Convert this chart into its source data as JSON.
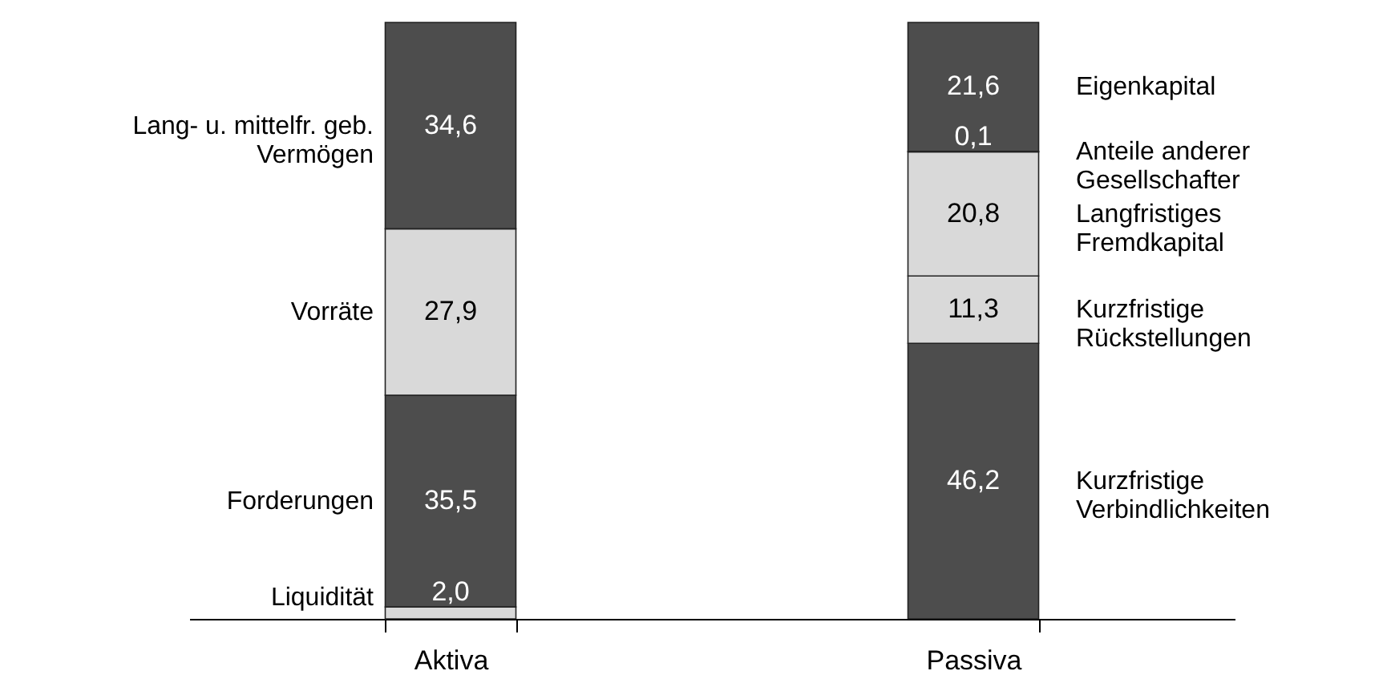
{
  "chart_data": {
    "type": "bar",
    "stacked": true,
    "grid": false,
    "categories": [
      "Aktiva",
      "Passiva"
    ],
    "series": [
      {
        "name": "Liquidität",
        "color": "#d9d9d9",
        "values": [
          2.0,
          null
        ],
        "value_labels": [
          "2,0",
          null
        ]
      },
      {
        "name": "Forderungen",
        "color": "#4d4d4d",
        "values": [
          35.5,
          null
        ],
        "value_labels": [
          "35,5",
          null
        ]
      },
      {
        "name": "Vorräte",
        "color": "#d9d9d9",
        "values": [
          27.9,
          null
        ],
        "value_labels": [
          "27,9",
          null
        ]
      },
      {
        "name": "Lang- u. mittelfr. geb.\nVermögen",
        "color": "#4d4d4d",
        "values": [
          34.6,
          null
        ],
        "value_labels": [
          "34,6",
          null
        ]
      },
      {
        "name": "Kurzfristige\nVerbindlichkeiten",
        "color": "#4d4d4d",
        "values": [
          null,
          46.2
        ],
        "value_labels": [
          null,
          "46,2"
        ]
      },
      {
        "name": "Kurzfristige\nRückstellungen",
        "color": "#d9d9d9",
        "values": [
          null,
          11.3
        ],
        "value_labels": [
          null,
          "11,3"
        ]
      },
      {
        "name": "Langfristiges\nFremdkapital",
        "color": "#d9d9d9",
        "values": [
          null,
          20.8
        ],
        "value_labels": [
          null,
          "20,8"
        ]
      },
      {
        "name": "Anteile anderer\nGesellschafter",
        "color": "#d9d9d9",
        "values": [
          null,
          0.1
        ],
        "value_labels": [
          null,
          "0,1"
        ]
      },
      {
        "name": "Eigenkapital",
        "color": "#4d4d4d",
        "values": [
          null,
          21.6
        ],
        "value_labels": [
          null,
          "21,6"
        ]
      }
    ]
  }
}
